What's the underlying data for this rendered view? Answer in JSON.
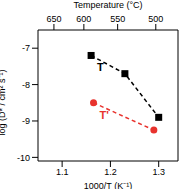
{
  "chart_data": {
    "type": "line",
    "x_label": "1000/T (K⁻¹)",
    "y_label": "log (D* / cm² s⁻¹)",
    "xlim": [
      1.05,
      1.34
    ],
    "xticks": [
      1.1,
      1.2,
      1.3
    ],
    "ylim": [
      -10.1,
      -6.5
    ],
    "yticks": [
      -10,
      -9,
      -8,
      -7
    ],
    "grid": false,
    "top_axis": {
      "label": "Temperature (°C)",
      "ticks": [
        {
          "value": 1.083,
          "label": "650"
        },
        {
          "value": 1.145,
          "label": "600"
        },
        {
          "value": 1.215,
          "label": "550"
        },
        {
          "value": 1.294,
          "label": "500"
        }
      ]
    },
    "series": [
      {
        "name": "T",
        "color": "#000000",
        "marker": "square",
        "line_style": "dashed",
        "x": [
          1.16,
          1.23,
          1.3
        ],
        "values": [
          -7.2,
          -7.7,
          -8.9
        ]
      },
      {
        "name": "T'",
        "color": "#e8322d",
        "marker": "circle",
        "line_style": "dashed",
        "x": [
          1.165,
          1.29
        ],
        "values": [
          -8.5,
          -9.25
        ]
      }
    ]
  }
}
